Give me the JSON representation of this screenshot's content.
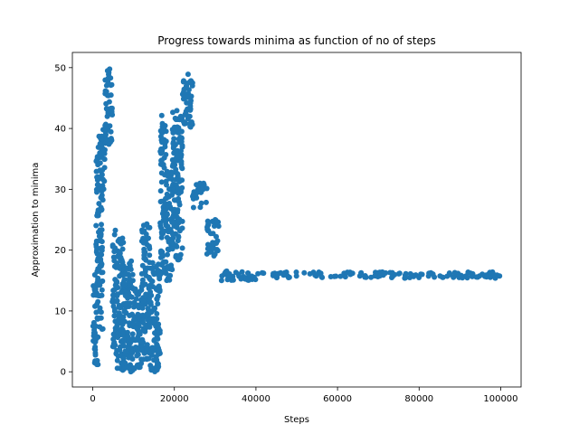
{
  "chart_data": {
    "type": "scatter",
    "title": "Progress towards minima as function of no of steps",
    "xlabel": "Steps",
    "ylabel": "Approximation to minima",
    "xlim": [
      -5000,
      105000
    ],
    "ylim": [
      -2.5,
      52.5
    ],
    "xticks": [
      0,
      20000,
      40000,
      60000,
      80000,
      100000
    ],
    "xtick_labels": [
      "0",
      "20000",
      "40000",
      "60000",
      "80000",
      "100000"
    ],
    "yticks": [
      0,
      10,
      20,
      30,
      40,
      50
    ],
    "ytick_labels": [
      "0",
      "10",
      "20",
      "30",
      "40",
      "50"
    ],
    "grid": false,
    "marker_color": "#1f77b4",
    "series": [
      {
        "name": "",
        "segments": [
          {
            "x_start": 0,
            "x_end": 800,
            "y_min": 0,
            "y_max": 16
          },
          {
            "x_start": 800,
            "x_end": 1500,
            "y_min": 1,
            "y_max": 37
          },
          {
            "x_start": 1500,
            "x_end": 2500,
            "y_min": 6,
            "y_max": 39
          },
          {
            "x_start": 2500,
            "x_end": 3000,
            "y_min": 30,
            "y_max": 40
          },
          {
            "x_start": 3000,
            "x_end": 4800,
            "y_min": 37,
            "y_max": 50
          },
          {
            "x_start": 4800,
            "x_end": 5600,
            "y_min": 4,
            "y_max": 24
          },
          {
            "x_start": 5600,
            "x_end": 7500,
            "y_min": 0,
            "y_max": 22
          },
          {
            "x_start": 7500,
            "x_end": 10000,
            "y_min": 0,
            "y_max": 19
          },
          {
            "x_start": 10000,
            "x_end": 12000,
            "y_min": 0,
            "y_max": 14
          },
          {
            "x_start": 12000,
            "x_end": 14000,
            "y_min": 2,
            "y_max": 25
          },
          {
            "x_start": 14000,
            "x_end": 16500,
            "y_min": 0,
            "y_max": 18
          },
          {
            "x_start": 16500,
            "x_end": 18000,
            "y_min": 16,
            "y_max": 43
          },
          {
            "x_start": 18000,
            "x_end": 19500,
            "y_min": 15,
            "y_max": 33
          },
          {
            "x_start": 19500,
            "x_end": 22000,
            "y_min": 18,
            "y_max": 43
          },
          {
            "x_start": 22000,
            "x_end": 24500,
            "y_min": 40,
            "y_max": 49
          },
          {
            "x_start": 24500,
            "x_end": 28000,
            "y_min": 27,
            "y_max": 31
          },
          {
            "x_start": 28000,
            "x_end": 31000,
            "y_min": 19,
            "y_max": 25
          },
          {
            "x_start": 31000,
            "x_end": 40000,
            "y_min": 15,
            "y_max": 16.6
          },
          {
            "x_start": 40000,
            "x_end": 100000,
            "y_min": 15.4,
            "y_max": 16.4
          }
        ]
      }
    ]
  }
}
